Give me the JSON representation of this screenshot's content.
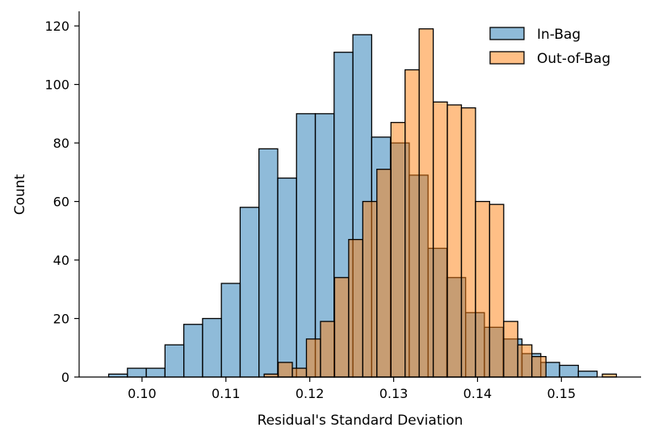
{
  "chart_data": {
    "type": "histogram",
    "xlabel": "Residual's Standard Deviation",
    "ylabel": "Count",
    "xlim": [
      0.0925,
      0.1595
    ],
    "ylim": [
      0,
      125
    ],
    "xticks": [
      0.1,
      0.11,
      0.12,
      0.13,
      0.14,
      0.15
    ],
    "xtick_labels": [
      "0.10",
      "0.11",
      "0.12",
      "0.13",
      "0.14",
      "0.15"
    ],
    "yticks": [
      0,
      20,
      40,
      60,
      80,
      100,
      120
    ],
    "ytick_labels": [
      "0",
      "20",
      "40",
      "60",
      "80",
      "100",
      "120"
    ],
    "grid": false,
    "legend_position": "top-right",
    "series": [
      {
        "name": "In-Bag",
        "color": "#1f77b4",
        "bin_width": 0.00224,
        "bin_start": 0.09602,
        "values": [
          1,
          3,
          3,
          11,
          18,
          20,
          32,
          58,
          78,
          68,
          90,
          90,
          111,
          117,
          82,
          80,
          69,
          44,
          34,
          22,
          17,
          13,
          8,
          5,
          4,
          2
        ]
      },
      {
        "name": "Out-of-Bag",
        "color": "#ff7f0e",
        "bin_width": 0.00168,
        "bin_start": 0.11456,
        "values": [
          1,
          5,
          3,
          13,
          19,
          34,
          47,
          60,
          71,
          87,
          105,
          119,
          94,
          93,
          92,
          60,
          59,
          19,
          11,
          7,
          0,
          0,
          0,
          0,
          1
        ]
      }
    ]
  }
}
